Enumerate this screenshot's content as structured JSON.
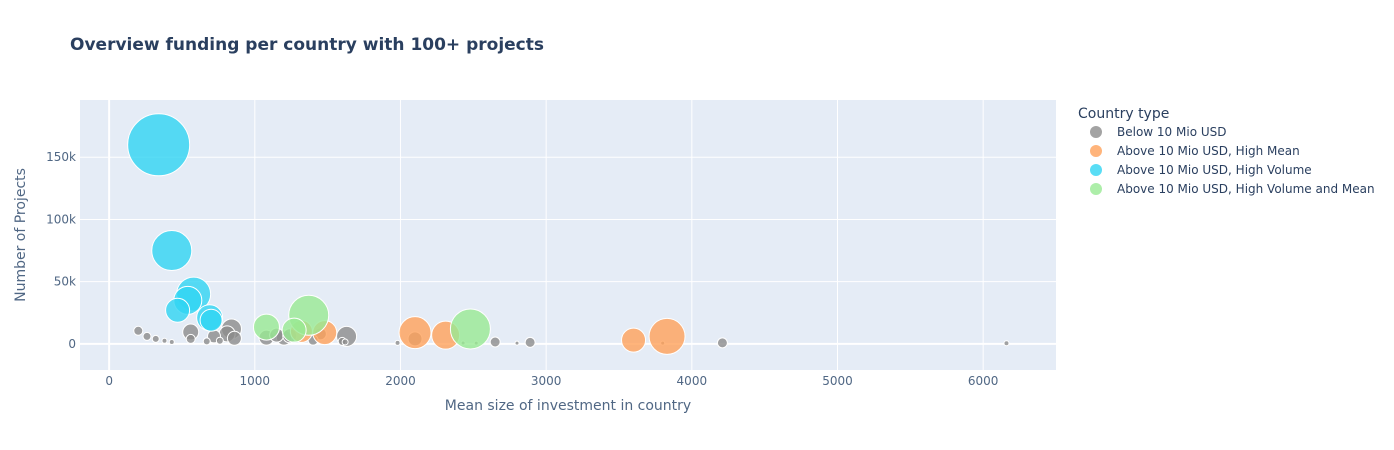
{
  "chart_data": {
    "type": "scatter",
    "title": "Overview funding per country with 100+ projects",
    "xlabel": "Mean size of investment in country",
    "ylabel": "Number of Projects",
    "xlim": [
      -200,
      6500
    ],
    "ylim": [
      -21000,
      196000
    ],
    "x_ticks": [
      0,
      1000,
      2000,
      3000,
      4000,
      5000,
      6000
    ],
    "x_tick_labels": [
      "0",
      "1000",
      "2000",
      "3000",
      "4000",
      "5000",
      "6000"
    ],
    "y_ticks": [
      0,
      50000,
      100000,
      150000
    ],
    "y_tick_labels": [
      "0",
      "50k",
      "100k",
      "150k"
    ],
    "grid": true,
    "legend_title": "Country type",
    "legend_position": "right",
    "series": [
      {
        "name": "Below 10 Mio USD",
        "color": "#8c8c8c",
        "points": [
          {
            "x": 200,
            "y": 10500,
            "size": 9
          },
          {
            "x": 260,
            "y": 6000,
            "size": 8
          },
          {
            "x": 320,
            "y": 4000,
            "size": 7
          },
          {
            "x": 380,
            "y": 2500,
            "size": 5
          },
          {
            "x": 430,
            "y": 1500,
            "size": 5
          },
          {
            "x": 560,
            "y": 4000,
            "size": 9
          },
          {
            "x": 560,
            "y": 9500,
            "size": 16
          },
          {
            "x": 670,
            "y": 2000,
            "size": 7
          },
          {
            "x": 720,
            "y": 6000,
            "size": 13
          },
          {
            "x": 760,
            "y": 2500,
            "size": 7
          },
          {
            "x": 810,
            "y": 8000,
            "size": 16
          },
          {
            "x": 840,
            "y": 12000,
            "size": 20
          },
          {
            "x": 860,
            "y": 4500,
            "size": 14
          },
          {
            "x": 1080,
            "y": 5000,
            "size": 15
          },
          {
            "x": 1150,
            "y": 7000,
            "size": 14
          },
          {
            "x": 1200,
            "y": 5000,
            "size": 15
          },
          {
            "x": 1240,
            "y": 6500,
            "size": 14
          },
          {
            "x": 1400,
            "y": 3000,
            "size": 10
          },
          {
            "x": 1450,
            "y": 8000,
            "size": 12
          },
          {
            "x": 1600,
            "y": 2000,
            "size": 8
          },
          {
            "x": 1630,
            "y": 6000,
            "size": 20
          },
          {
            "x": 1620,
            "y": 1500,
            "size": 6
          },
          {
            "x": 1980,
            "y": 800,
            "size": 5
          },
          {
            "x": 2100,
            "y": 4000,
            "size": 14
          },
          {
            "x": 2430,
            "y": 700,
            "size": 4
          },
          {
            "x": 2520,
            "y": 600,
            "size": 4
          },
          {
            "x": 2650,
            "y": 1500,
            "size": 10
          },
          {
            "x": 2800,
            "y": 600,
            "size": 4
          },
          {
            "x": 2890,
            "y": 1200,
            "size": 10
          },
          {
            "x": 3800,
            "y": 600,
            "size": 4
          },
          {
            "x": 4210,
            "y": 800,
            "size": 10
          },
          {
            "x": 6160,
            "y": 500,
            "size": 5
          }
        ]
      },
      {
        "name": "Above 10 Mio USD, High Mean",
        "color": "#ffa15a",
        "points": [
          {
            "x": 1320,
            "y": 10000,
            "size": 22
          },
          {
            "x": 1480,
            "y": 9000,
            "size": 24
          },
          {
            "x": 2100,
            "y": 9000,
            "size": 32
          },
          {
            "x": 2310,
            "y": 7000,
            "size": 28
          },
          {
            "x": 3600,
            "y": 3000,
            "size": 24
          },
          {
            "x": 3830,
            "y": 6000,
            "size": 36
          }
        ]
      },
      {
        "name": "Above 10 Mio USD, High Volume",
        "color": "#2fd4f2",
        "points": [
          {
            "x": 340,
            "y": 160000,
            "size": 62
          },
          {
            "x": 430,
            "y": 75000,
            "size": 40
          },
          {
            "x": 580,
            "y": 40000,
            "size": 34
          },
          {
            "x": 540,
            "y": 35000,
            "size": 28
          },
          {
            "x": 470,
            "y": 27000,
            "size": 24
          },
          {
            "x": 690,
            "y": 21000,
            "size": 26
          },
          {
            "x": 700,
            "y": 19000,
            "size": 22
          }
        ]
      },
      {
        "name": "Above 10 Mio USD, High Volume and Mean",
        "color": "#99ea93",
        "points": [
          {
            "x": 1080,
            "y": 13500,
            "size": 26
          },
          {
            "x": 1270,
            "y": 11000,
            "size": 24
          },
          {
            "x": 1370,
            "y": 23000,
            "size": 40
          },
          {
            "x": 2480,
            "y": 12000,
            "size": 40
          }
        ]
      }
    ]
  }
}
